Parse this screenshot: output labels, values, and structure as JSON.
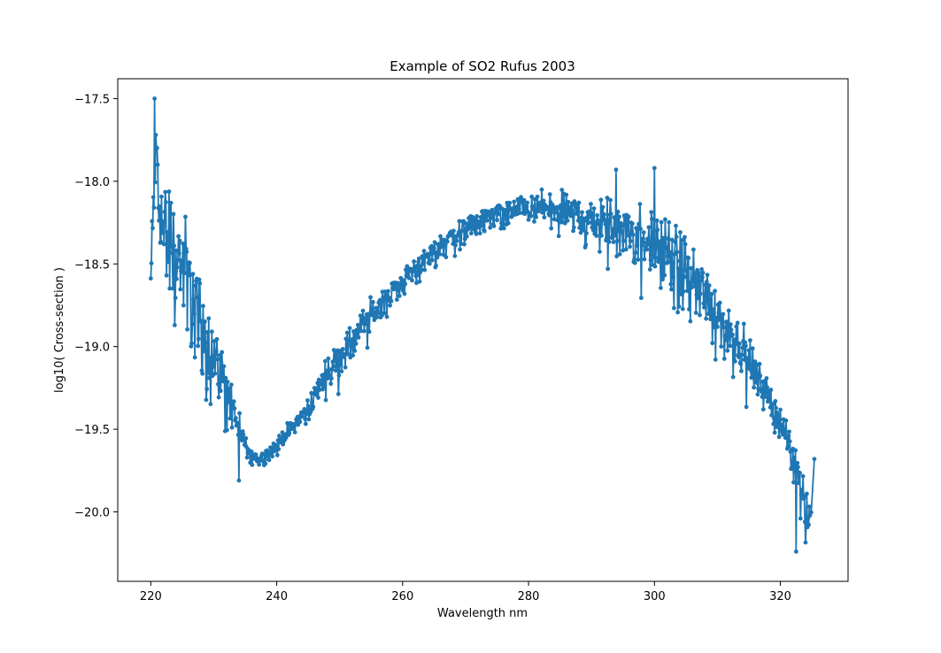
{
  "chart_data": {
    "type": "line",
    "title": "Example of SO2 Rufus 2003",
    "xlabel": "Wavelength nm",
    "ylabel": "log10( Cross-section )",
    "xlim": [
      214.75,
      330.75
    ],
    "ylim": [
      -20.42,
      -17.38
    ],
    "xticks": [
      220,
      240,
      260,
      280,
      300,
      320
    ],
    "xtick_labels": [
      "220",
      "240",
      "260",
      "280",
      "300",
      "320"
    ],
    "yticks": [
      -17.5,
      -18.0,
      -18.5,
      -19.0,
      -19.5,
      -20.0
    ],
    "ytick_labels": [
      "−17.5",
      "−18.0",
      "−18.5",
      "−19.0",
      "−19.5",
      "−20.0"
    ],
    "grid": false,
    "legend": "none",
    "series_color": "#1f77b4",
    "marker": "circle",
    "envelope": {
      "x": [
        220,
        220.5,
        221,
        222,
        223,
        224,
        225,
        226,
        227,
        228,
        229,
        230,
        231,
        232,
        233,
        234,
        235,
        236,
        237,
        238,
        240,
        242,
        244,
        246,
        248,
        250,
        252,
        254,
        256,
        258,
        260,
        262,
        264,
        266,
        268,
        270,
        272,
        274,
        276,
        278,
        280,
        282,
        284,
        286,
        288,
        290,
        292,
        294,
        296,
        298,
        300,
        302,
        304,
        306,
        308,
        310,
        312,
        314,
        316,
        318,
        320,
        321,
        322,
        323,
        324,
        325
      ],
      "y": [
        -18.6,
        -18.1,
        -18.0,
        -18.3,
        -18.35,
        -18.45,
        -18.5,
        -18.6,
        -18.7,
        -18.85,
        -18.95,
        -19.05,
        -19.15,
        -19.25,
        -19.35,
        -19.5,
        -19.6,
        -19.66,
        -19.68,
        -19.66,
        -19.6,
        -19.5,
        -19.42,
        -19.3,
        -19.15,
        -19.05,
        -18.95,
        -18.85,
        -18.75,
        -18.68,
        -18.6,
        -18.52,
        -18.46,
        -18.38,
        -18.33,
        -18.28,
        -18.24,
        -18.2,
        -18.18,
        -18.17,
        -18.16,
        -18.16,
        -18.17,
        -18.18,
        -18.2,
        -18.22,
        -18.25,
        -18.28,
        -18.3,
        -18.35,
        -18.4,
        -18.45,
        -18.5,
        -18.6,
        -18.68,
        -18.8,
        -18.9,
        -19.0,
        -19.15,
        -19.3,
        -19.45,
        -19.55,
        -19.65,
        -19.75,
        -19.95,
        -20.1
      ],
      "amplitude": [
        0.12,
        0.3,
        0.3,
        0.3,
        0.3,
        0.28,
        0.28,
        0.26,
        0.24,
        0.22,
        0.2,
        0.18,
        0.16,
        0.14,
        0.13,
        0.12,
        0.05,
        0.03,
        0.03,
        0.03,
        0.04,
        0.04,
        0.05,
        0.06,
        0.07,
        0.08,
        0.08,
        0.08,
        0.08,
        0.07,
        0.06,
        0.06,
        0.06,
        0.06,
        0.06,
        0.05,
        0.05,
        0.05,
        0.05,
        0.06,
        0.07,
        0.08,
        0.09,
        0.1,
        0.1,
        0.12,
        0.14,
        0.16,
        0.18,
        0.2,
        0.2,
        0.2,
        0.2,
        0.18,
        0.16,
        0.14,
        0.13,
        0.12,
        0.1,
        0.08,
        0.08,
        0.08,
        0.08,
        0.12,
        0.15,
        0.15
      ]
    },
    "extremes": [
      {
        "x": 220.6,
        "y": -17.5
      },
      {
        "x": 220.8,
        "y": -17.72
      },
      {
        "x": 221.1,
        "y": -17.9
      },
      {
        "x": 234.0,
        "y": -19.81
      },
      {
        "x": 293.9,
        "y": -17.93
      },
      {
        "x": 300.0,
        "y": -17.92
      },
      {
        "x": 322.5,
        "y": -20.24
      },
      {
        "x": 325.2,
        "y": -20.27
      },
      {
        "x": 325.4,
        "y": -19.68
      }
    ]
  }
}
